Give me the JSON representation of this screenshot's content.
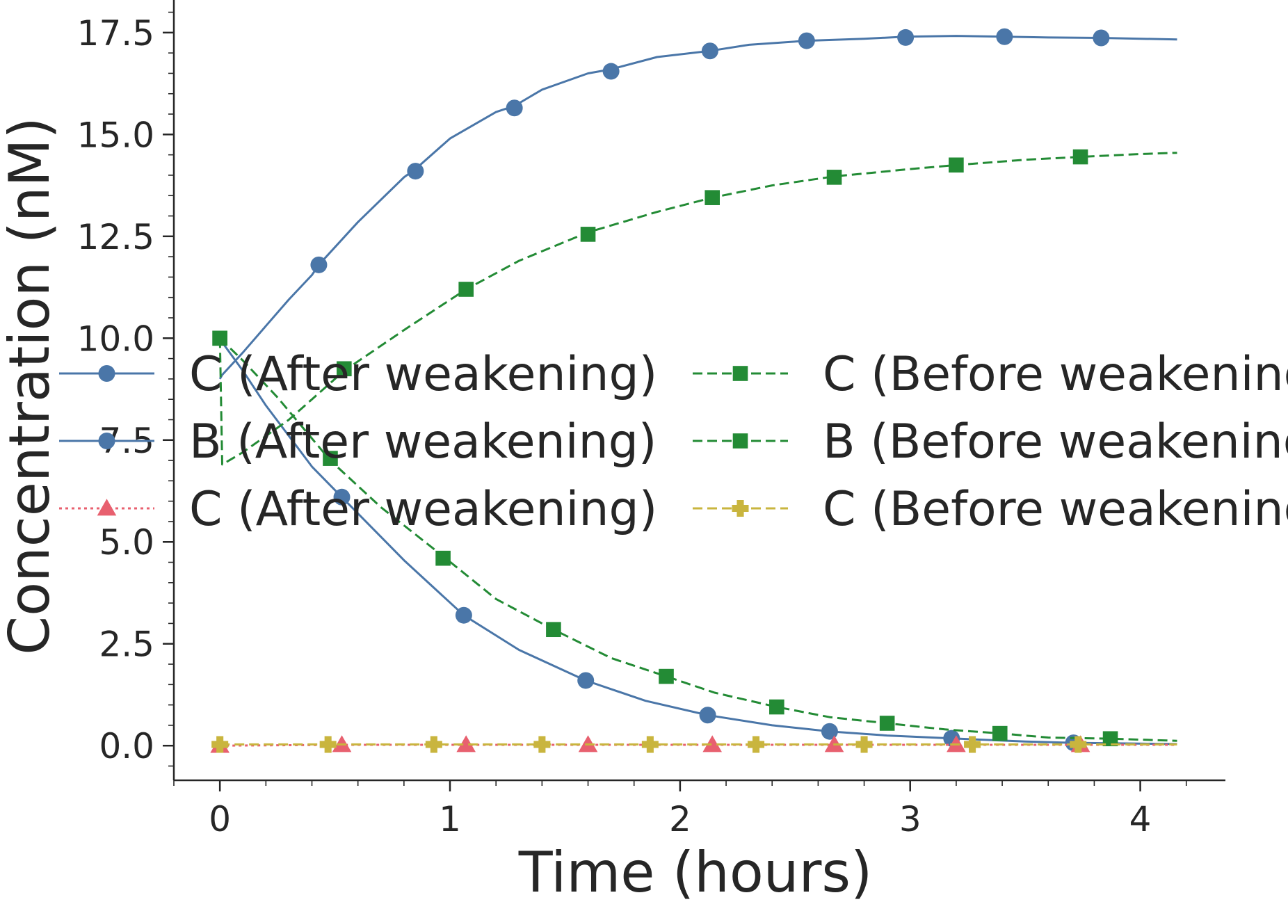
{
  "chart_data": {
    "type": "line",
    "title": "",
    "xlabel": "Time (hours)",
    "ylabel": "Concentration (nM)",
    "xlim": [
      -0.2,
      4.37
    ],
    "ylim": [
      -0.85,
      18.3
    ],
    "xticks": [
      0,
      1,
      2,
      3,
      4
    ],
    "xtick_labels": [
      "0",
      "1",
      "2",
      "3",
      "4"
    ],
    "yticks": [
      0.0,
      2.5,
      5.0,
      7.5,
      10.0,
      12.5,
      15.0,
      17.5
    ],
    "ytick_labels": [
      "0.0",
      "2.5",
      "5.0",
      "7.5",
      "10.0",
      "12.5",
      "15.0",
      "17.5"
    ],
    "grid": false,
    "legend_placement": "center",
    "legend_columns": 2,
    "series": [
      {
        "name": "C (After weakening)",
        "color": "#4a76a8",
        "line_style": "solid",
        "marker": "circle",
        "x": [
          0,
          0.01,
          0.1,
          0.2,
          0.3,
          0.4,
          0.43,
          0.6,
          0.8,
          0.85,
          1.0,
          1.2,
          1.28,
          1.4,
          1.6,
          1.7,
          1.9,
          2.13,
          2.3,
          2.55,
          2.8,
          2.98,
          3.2,
          3.41,
          3.6,
          3.83,
          4.16
        ],
        "y": [
          9.0,
          9.1,
          9.65,
          10.3,
          10.95,
          11.55,
          11.8,
          12.85,
          13.95,
          14.15,
          14.9,
          15.55,
          15.7,
          16.1,
          16.5,
          16.6,
          16.9,
          17.05,
          17.2,
          17.3,
          17.35,
          17.4,
          17.42,
          17.4,
          17.38,
          17.37,
          17.33
        ],
        "marker_x": [
          0.43,
          0.85,
          1.28,
          1.7,
          2.13,
          2.55,
          2.98,
          3.41,
          3.83
        ],
        "marker_y": [
          11.8,
          14.1,
          15.65,
          16.55,
          17.05,
          17.3,
          17.38,
          17.4,
          17.37
        ]
      },
      {
        "name": "B (After weakening)",
        "color": "#4a76a8",
        "line_style": "solid",
        "marker": "circle",
        "x": [
          0,
          0.01,
          0.1,
          0.2,
          0.3,
          0.4,
          0.53,
          0.8,
          1.06,
          1.3,
          1.59,
          1.85,
          2.12,
          2.4,
          2.65,
          2.9,
          3.18,
          3.5,
          3.71,
          4.0,
          4.16
        ],
        "y": [
          10.0,
          9.9,
          9.2,
          8.35,
          7.6,
          6.85,
          6.1,
          4.55,
          3.2,
          2.35,
          1.6,
          1.1,
          0.75,
          0.5,
          0.35,
          0.25,
          0.18,
          0.1,
          0.07,
          0.05,
          0.04
        ],
        "marker_x": [
          0.53,
          1.06,
          1.59,
          2.12,
          2.65,
          3.18,
          3.71
        ],
        "marker_y": [
          6.1,
          3.2,
          1.6,
          0.75,
          0.35,
          0.18,
          0.07
        ]
      },
      {
        "name": "C (After weakening)",
        "color": "#e8606f",
        "line_style": "dotted",
        "marker": "triangle",
        "x": [
          0,
          0.53,
          1.07,
          1.6,
          2.14,
          2.67,
          3.2,
          3.74,
          4.16
        ],
        "y": [
          0,
          0.02,
          0.02,
          0.02,
          0.02,
          0.02,
          0.02,
          0.02,
          0.02
        ],
        "marker_x": [
          0,
          0.53,
          1.07,
          1.6,
          2.14,
          2.67,
          3.2,
          3.74
        ],
        "marker_y": [
          0,
          0.02,
          0.02,
          0.02,
          0.02,
          0.02,
          0.02,
          0.02
        ]
      },
      {
        "name": "C (Before weakening)",
        "color": "#238b35",
        "line_style": "dashed",
        "marker": "square",
        "x": [
          0,
          0.01,
          0.1,
          0.2,
          0.3,
          0.4,
          0.54,
          0.8,
          1.07,
          1.3,
          1.6,
          1.9,
          2.14,
          2.4,
          2.67,
          3.0,
          3.2,
          3.5,
          3.74,
          4.0,
          4.16
        ],
        "y": [
          10.0,
          6.9,
          7.2,
          7.6,
          8.0,
          8.5,
          9.2,
          10.2,
          11.2,
          11.9,
          12.6,
          13.1,
          13.45,
          13.75,
          13.97,
          14.15,
          14.25,
          14.38,
          14.45,
          14.52,
          14.55
        ],
        "marker_x": [
          0,
          0.54,
          1.07,
          1.6,
          2.14,
          2.67,
          3.2,
          3.74
        ],
        "marker_y": [
          10.0,
          9.25,
          11.2,
          12.55,
          13.45,
          13.95,
          14.25,
          14.45
        ]
      },
      {
        "name": "B (Before weakening)",
        "color": "#238b35",
        "line_style": "dashed",
        "marker": "square",
        "x": [
          0,
          0.1,
          0.25,
          0.48,
          0.7,
          0.97,
          1.2,
          1.45,
          1.7,
          1.94,
          2.15,
          2.42,
          2.65,
          2.9,
          3.15,
          3.39,
          3.6,
          3.87,
          4.16
        ],
        "y": [
          10.0,
          9.45,
          8.55,
          7.0,
          5.85,
          4.65,
          3.6,
          2.85,
          2.15,
          1.7,
          1.3,
          0.95,
          0.7,
          0.55,
          0.4,
          0.3,
          0.2,
          0.17,
          0.12
        ],
        "marker_x": [
          0,
          0.48,
          0.97,
          1.45,
          1.94,
          2.42,
          2.9,
          3.39,
          3.87
        ],
        "marker_y": [
          10.0,
          7.05,
          4.6,
          2.85,
          1.7,
          0.95,
          0.55,
          0.3,
          0.17
        ]
      },
      {
        "name": "C (Before weakening)",
        "color": "#c9b53e",
        "line_style": "dashed",
        "marker": "plus",
        "x": [
          0,
          0.47,
          0.93,
          1.4,
          1.87,
          2.33,
          2.8,
          3.27,
          3.73,
          4.16
        ],
        "y": [
          0.03,
          0.03,
          0.03,
          0.03,
          0.03,
          0.03,
          0.03,
          0.03,
          0.03,
          0.03
        ],
        "marker_x": [
          0,
          0.47,
          0.93,
          1.4,
          1.87,
          2.33,
          2.8,
          3.27,
          3.73
        ],
        "marker_y": [
          0.03,
          0.03,
          0.03,
          0.03,
          0.03,
          0.03,
          0.03,
          0.03,
          0.03
        ]
      }
    ]
  }
}
